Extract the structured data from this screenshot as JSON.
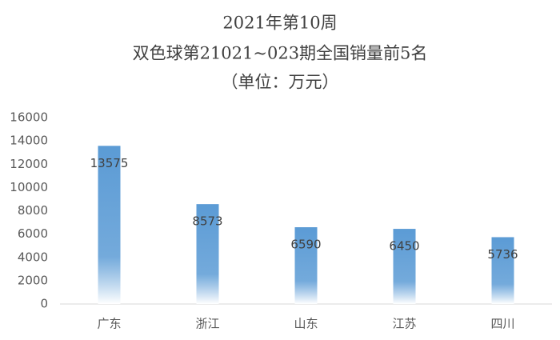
{
  "chart_data": {
    "type": "bar",
    "title": "2021年第10周",
    "subtitle": "双色球第21021~023期全国销量前5名",
    "unit_note": "（单位：万元）",
    "categories": [
      "广东",
      "浙江",
      "山东",
      "江苏",
      "四川"
    ],
    "values": [
      13575,
      8573,
      6590,
      6450,
      5736
    ],
    "color": "#5b9bd5",
    "ylim": [
      0,
      16000
    ],
    "yticks": [
      0,
      2000,
      4000,
      6000,
      8000,
      10000,
      12000,
      14000,
      16000
    ],
    "grid": false
  }
}
